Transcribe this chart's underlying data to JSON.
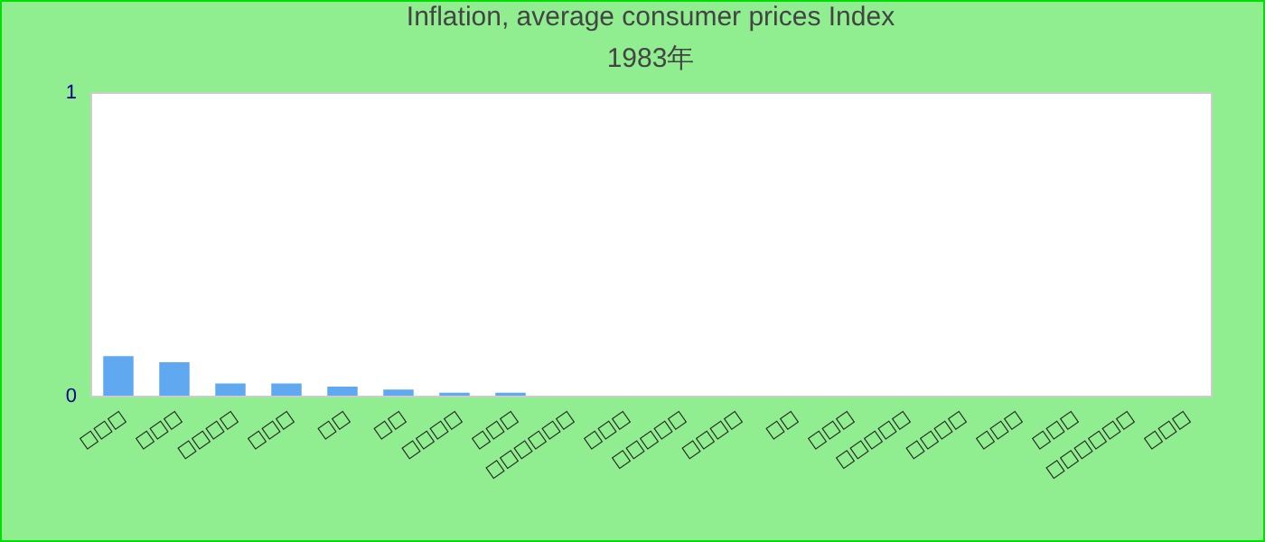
{
  "chart_data": {
    "type": "bar",
    "title": "Inflation, average consumer prices  Index",
    "subtitle": "1983年",
    "categories": [
      "□□□",
      "□□□",
      "□□□□",
      "□□□",
      "□□",
      "□□",
      "□□□□",
      "□□□",
      "□□□□□□",
      "□□□",
      "□□□□□",
      "□□□□",
      "□□",
      "□□□",
      "□□□□□",
      "□□□□",
      "□□□",
      "□□□",
      "□□□□□□",
      "□□□"
    ],
    "values": [
      0.13,
      0.11,
      0.04,
      0.04,
      0.03,
      0.02,
      0.01,
      0.01,
      0,
      0,
      0,
      0,
      0,
      0,
      0,
      0,
      0,
      0,
      0,
      0
    ],
    "color": "#60a8f0",
    "ylim": [
      0,
      1
    ],
    "yticks": [
      0,
      1
    ],
    "grid": false
  }
}
